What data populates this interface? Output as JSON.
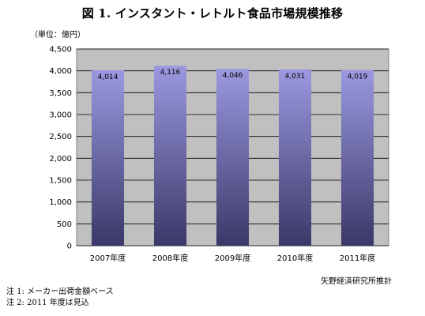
{
  "title": "図 1. インスタント・レトルト食品市場規模推移",
  "unit_label": "（単位：億円）",
  "source": "矢野経済研究所推計",
  "notes": [
    "注 1:  メーカー出荷金額ベース",
    "注 2: 2011 年度は見込"
  ],
  "chart_data": {
    "type": "bar",
    "title": "図 1. インスタント・レトルト食品市場規模推移",
    "xlabel": "",
    "ylabel": "（単位：億円）",
    "categories": [
      "2007年度",
      "2008年度",
      "2009年度",
      "2010年度",
      "2011年度"
    ],
    "values": [
      4014,
      4116,
      4046,
      4031,
      4019
    ],
    "value_labels": [
      "4,014",
      "4,116",
      "4,046",
      "4,031",
      "4,019"
    ],
    "ylim": [
      0,
      4500
    ],
    "yticks": [
      0,
      500,
      1000,
      1500,
      2000,
      2500,
      3000,
      3500,
      4000,
      4500
    ],
    "ytick_labels": [
      "0",
      "500",
      "1,000",
      "1,500",
      "2,000",
      "2,500",
      "3,000",
      "3,500",
      "4,000",
      "4,500"
    ],
    "grid": true,
    "legend": "none",
    "colors": {
      "plot_background": "#c0c0c0",
      "bar_top": "#9b98e0",
      "bar_bottom": "#3a3868",
      "grid": "#000000"
    }
  }
}
